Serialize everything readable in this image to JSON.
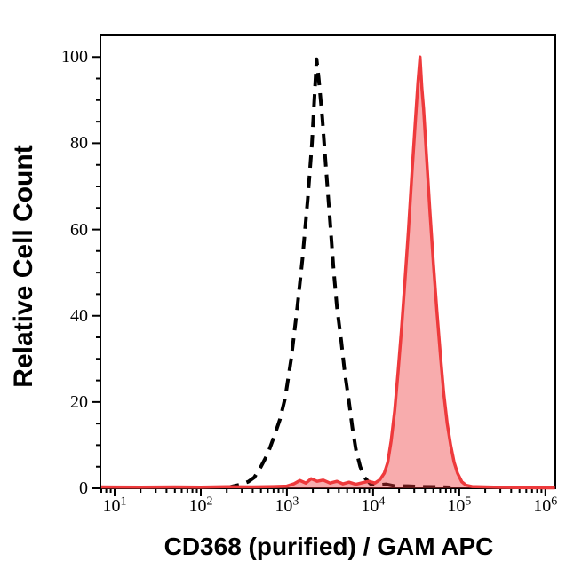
{
  "figure": {
    "background": "#ffffff",
    "axis_color": "#000000"
  },
  "chart_data": {
    "type": "area",
    "subtype": "flow-cytometry-overlay-histogram",
    "title": "",
    "xlabel": "CD368 (purified) / GAM APC",
    "ylabel": "Relative Cell Count",
    "x_scale": "log",
    "x_tick_base": "10",
    "x_tick_exponents": [
      1,
      2,
      3,
      4,
      5,
      6
    ],
    "x_range_log10": [
      0.835,
      6.115
    ],
    "y_ticks": [
      0,
      20,
      40,
      60,
      80,
      100
    ],
    "y_minor_step": 5,
    "y_range": [
      0,
      105.2
    ],
    "grid": false,
    "legend": "none",
    "series": [
      {
        "name": "black-dashed-curve",
        "style": "dashed",
        "color": "#000000",
        "width": 4,
        "dash": "14 9",
        "peak_x": 2210,
        "peak_y": 99.5,
        "points": [
          [
            200,
            0.15
          ],
          [
            282,
            0.8
          ],
          [
            355,
            1.5
          ],
          [
            417,
            2.5
          ],
          [
            500,
            5
          ],
          [
            600,
            8
          ],
          [
            710,
            12
          ],
          [
            830,
            16
          ],
          [
            955,
            21
          ],
          [
            1120,
            30
          ],
          [
            1320,
            42
          ],
          [
            1510,
            53
          ],
          [
            1740,
            67
          ],
          [
            1950,
            80
          ],
          [
            2090,
            91
          ],
          [
            2210,
            99.5
          ],
          [
            2340,
            95
          ],
          [
            2570,
            86
          ],
          [
            2820,
            75
          ],
          [
            3160,
            62
          ],
          [
            3470,
            51
          ],
          [
            3800,
            42
          ],
          [
            4270,
            34
          ],
          [
            4680,
            27
          ],
          [
            5250,
            20
          ],
          [
            5750,
            14
          ],
          [
            6310,
            9
          ],
          [
            7080,
            5
          ],
          [
            7940,
            2.5
          ],
          [
            9330,
            1
          ],
          [
            11200,
            0.7
          ],
          [
            14100,
            0.9
          ],
          [
            17800,
            0.5
          ],
          [
            25100,
            0.5
          ],
          [
            35500,
            0.35
          ],
          [
            50100,
            0.3
          ],
          [
            79400,
            0.2
          ]
        ]
      },
      {
        "name": "red-filled-curve",
        "style": "filled-line",
        "color": "#ee3a3c",
        "fill": "rgba(238,58,60,0.42)",
        "width": 3.5,
        "dash": "",
        "peak_x": 35000,
        "peak_y": 100,
        "points": [
          [
            7,
            0.3
          ],
          [
            20,
            0.25
          ],
          [
            50,
            0.3
          ],
          [
            100,
            0.25
          ],
          [
            200,
            0.35
          ],
          [
            400,
            0.3
          ],
          [
            700,
            0.4
          ],
          [
            1000,
            0.5
          ],
          [
            1200,
            1.0
          ],
          [
            1410,
            1.8
          ],
          [
            1660,
            1.2
          ],
          [
            1910,
            2.2
          ],
          [
            2240,
            1.6
          ],
          [
            2630,
            1.9
          ],
          [
            3160,
            1.2
          ],
          [
            3800,
            1.6
          ],
          [
            4470,
            1.0
          ],
          [
            5250,
            1.4
          ],
          [
            6310,
            0.9
          ],
          [
            7590,
            1.3
          ],
          [
            8910,
            1.6
          ],
          [
            10500,
            1.2
          ],
          [
            12000,
            2.0
          ],
          [
            13500,
            3.5
          ],
          [
            14800,
            6
          ],
          [
            16200,
            11
          ],
          [
            17800,
            18
          ],
          [
            19500,
            27
          ],
          [
            21400,
            37
          ],
          [
            23400,
            48
          ],
          [
            25700,
            60
          ],
          [
            28200,
            73
          ],
          [
            30900,
            85
          ],
          [
            33100,
            94
          ],
          [
            35000,
            100
          ],
          [
            36700,
            93
          ],
          [
            38500,
            88
          ],
          [
            41700,
            77
          ],
          [
            45700,
            64
          ],
          [
            50100,
            52
          ],
          [
            55000,
            41
          ],
          [
            60300,
            31
          ],
          [
            66100,
            22
          ],
          [
            72400,
            15
          ],
          [
            79400,
            10
          ],
          [
            87100,
            6
          ],
          [
            95500,
            3.5
          ],
          [
            107000,
            1.5
          ],
          [
            120000,
            0.7
          ],
          [
            141000,
            0.4
          ],
          [
            200000,
            0.3
          ],
          [
            316000,
            0.2
          ],
          [
            501000,
            0.15
          ],
          [
            1000000,
            0.1
          ],
          [
            1290000,
            0.1
          ]
        ]
      }
    ]
  }
}
